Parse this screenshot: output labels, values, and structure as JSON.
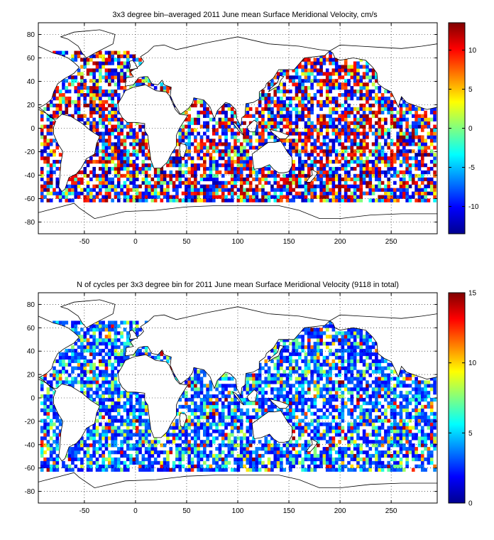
{
  "chart_data": [
    {
      "type": "heatmap",
      "title": "3x3 degree bin–averaged 2011 June mean Surface Meridional Velocity, cm/s",
      "xlim": [
        -95,
        295
      ],
      "ylim": [
        -90,
        90
      ],
      "x_ticks": [
        -50,
        0,
        50,
        100,
        150,
        200,
        250
      ],
      "y_ticks": [
        80,
        60,
        40,
        20,
        0,
        -20,
        -40,
        -60,
        -80
      ],
      "grid": "dotted",
      "bin_size_deg": 3,
      "colorbar": {
        "colormap": "jet",
        "clim": [
          -13.5,
          13.5
        ],
        "ticks": [
          10,
          5,
          0,
          -5,
          -10
        ]
      }
    },
    {
      "type": "heatmap",
      "title": "N of cycles per 3x3 degree bin for 2011 June mean Surface Meridional Velocity (9118 in total)",
      "xlim": [
        -95,
        295
      ],
      "ylim": [
        -90,
        90
      ],
      "x_ticks": [
        -50,
        0,
        50,
        100,
        150,
        200,
        250
      ],
      "y_ticks": [
        80,
        60,
        40,
        20,
        0,
        -20,
        -40,
        -60,
        -80
      ],
      "grid": "dotted",
      "bin_size_deg": 3,
      "colorbar": {
        "colormap": "jet",
        "clim": [
          0,
          15
        ],
        "ticks": [
          15,
          10,
          5,
          0
        ]
      }
    }
  ]
}
